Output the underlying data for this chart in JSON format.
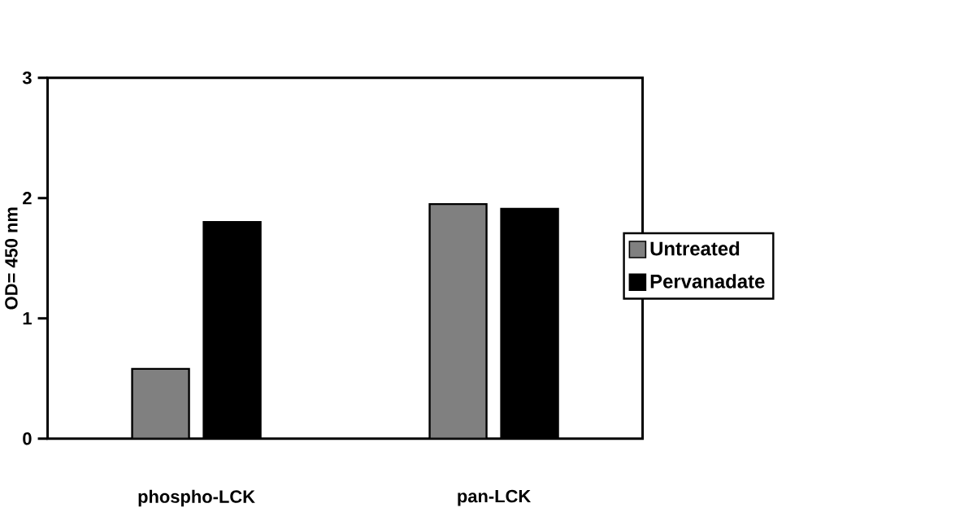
{
  "chart_data": {
    "type": "bar",
    "ylabel": "OD= 450 nm",
    "categories": [
      "phospho-LCK",
      "pan-LCK"
    ],
    "series": [
      {
        "name": "Untreated",
        "color": "#808080",
        "values": [
          0.58,
          1.95
        ]
      },
      {
        "name": "Pervanadate",
        "color": "#000000",
        "values": [
          1.8,
          1.91
        ]
      }
    ],
    "ylim": [
      0,
      3
    ],
    "yticks": [
      0,
      1,
      2,
      3
    ],
    "legend": "right",
    "grid": false
  }
}
